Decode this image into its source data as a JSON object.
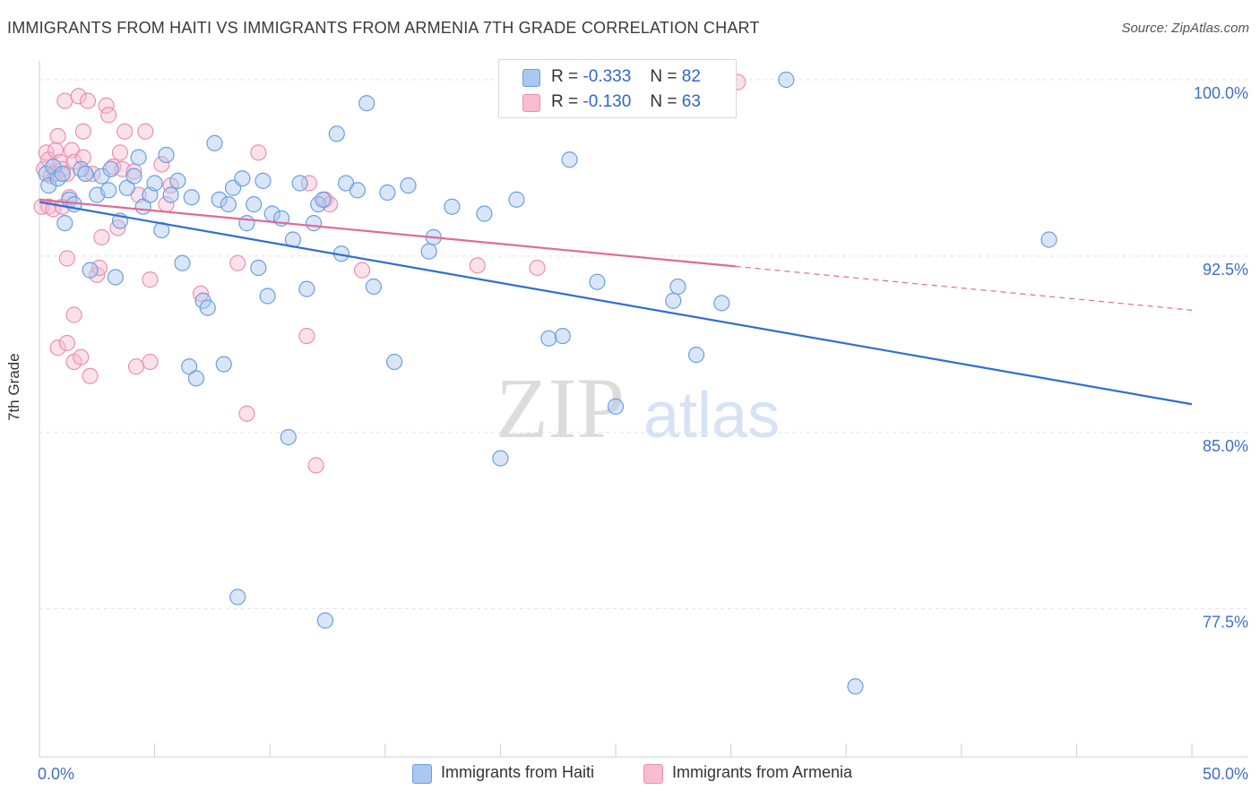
{
  "header": {
    "title": "IMMIGRANTS FROM HAITI VS IMMIGRANTS FROM ARMENIA 7TH GRADE CORRELATION CHART",
    "source": "Source: ZipAtlas.com"
  },
  "watermark": {
    "zip": "ZIP",
    "atlas": "atlas"
  },
  "legend": {
    "rows": [
      {
        "r_label": "R =",
        "r_value": "-0.333",
        "n_label": "N =",
        "n_value": "82"
      },
      {
        "r_label": "R =",
        "r_value": "-0.130",
        "n_label": "N =",
        "n_value": "63"
      }
    ]
  },
  "bottom_legend": {
    "items": [
      "Immigrants from Haiti",
      "Immigrants from Armenia"
    ]
  },
  "colors": {
    "haiti_fill": "#aac8f0",
    "haiti_stroke": "#6a9ee0",
    "haiti_line": "#2f6fd0",
    "armenia_fill": "#f7bcd0",
    "armenia_stroke": "#ec8fb0",
    "armenia_line": "#e06a95",
    "tick_text": "#3f6fc6",
    "grid": "#e3e3e3"
  },
  "chart_data": {
    "type": "scatter",
    "title": "IMMIGRANTS FROM HAITI VS IMMIGRANTS FROM ARMENIA 7TH GRADE CORRELATION CHART",
    "xlabel": "",
    "ylabel": "7th Grade",
    "xlim": [
      0,
      50
    ],
    "ylim": [
      71.2,
      100.8
    ],
    "x_tick_labels": [
      "0.0%",
      "50.0%"
    ],
    "y_ticks": [
      77.5,
      85.0,
      92.5,
      100.0
    ],
    "y_tick_labels": [
      "77.5%",
      "85.0%",
      "92.5%",
      "100.0%"
    ],
    "grid": "horizontal dashed",
    "legend_position": "top-center",
    "series": [
      {
        "name": "Immigrants from Haiti",
        "r": -0.333,
        "n": 82,
        "trend": {
          "x0": 0,
          "y0": 94.8,
          "x1": 50,
          "y1": 86.2,
          "solid_until": 50
        },
        "points": [
          [
            0.3,
            96.0
          ],
          [
            0.4,
            95.5
          ],
          [
            0.6,
            96.3
          ],
          [
            0.8,
            95.8
          ],
          [
            1.0,
            96.0
          ],
          [
            1.1,
            93.9
          ],
          [
            1.3,
            94.9
          ],
          [
            1.5,
            94.7
          ],
          [
            1.8,
            96.2
          ],
          [
            2.0,
            96.0
          ],
          [
            2.2,
            91.9
          ],
          [
            2.5,
            95.1
          ],
          [
            2.7,
            95.9
          ],
          [
            3.0,
            95.3
          ],
          [
            3.1,
            96.2
          ],
          [
            3.3,
            91.6
          ],
          [
            3.5,
            94.0
          ],
          [
            3.8,
            95.4
          ],
          [
            4.1,
            95.9
          ],
          [
            4.3,
            96.7
          ],
          [
            4.5,
            94.6
          ],
          [
            4.8,
            95.1
          ],
          [
            5.0,
            95.6
          ],
          [
            5.3,
            93.6
          ],
          [
            5.5,
            96.8
          ],
          [
            5.7,
            95.1
          ],
          [
            6.0,
            95.7
          ],
          [
            6.2,
            92.2
          ],
          [
            6.5,
            87.8
          ],
          [
            6.6,
            95.0
          ],
          [
            6.8,
            87.3
          ],
          [
            7.1,
            90.6
          ],
          [
            7.3,
            90.3
          ],
          [
            7.6,
            97.3
          ],
          [
            7.8,
            94.9
          ],
          [
            8.0,
            87.9
          ],
          [
            8.2,
            94.7
          ],
          [
            8.4,
            95.4
          ],
          [
            8.6,
            78.0
          ],
          [
            8.8,
            95.8
          ],
          [
            9.0,
            93.9
          ],
          [
            9.3,
            94.7
          ],
          [
            9.5,
            92.0
          ],
          [
            9.7,
            95.7
          ],
          [
            9.9,
            90.8
          ],
          [
            10.1,
            94.3
          ],
          [
            10.5,
            94.1
          ],
          [
            10.8,
            84.8
          ],
          [
            11.0,
            93.2
          ],
          [
            11.3,
            95.6
          ],
          [
            11.6,
            91.1
          ],
          [
            11.9,
            93.9
          ],
          [
            12.1,
            94.7
          ],
          [
            12.3,
            94.9
          ],
          [
            12.4,
            77.0
          ],
          [
            12.9,
            97.7
          ],
          [
            13.1,
            92.6
          ],
          [
            13.3,
            95.6
          ],
          [
            13.8,
            95.3
          ],
          [
            14.2,
            99.0
          ],
          [
            14.5,
            91.2
          ],
          [
            15.1,
            95.2
          ],
          [
            15.4,
            88.0
          ],
          [
            16.0,
            95.5
          ],
          [
            16.9,
            92.7
          ],
          [
            17.1,
            93.3
          ],
          [
            17.9,
            94.6
          ],
          [
            19.3,
            94.3
          ],
          [
            20.0,
            83.9
          ],
          [
            20.7,
            94.9
          ],
          [
            22.1,
            89.0
          ],
          [
            22.7,
            89.1
          ],
          [
            23.0,
            96.6
          ],
          [
            24.2,
            91.4
          ],
          [
            25.0,
            86.1
          ],
          [
            27.5,
            90.6
          ],
          [
            27.7,
            91.2
          ],
          [
            28.5,
            88.3
          ],
          [
            29.6,
            90.5
          ],
          [
            32.4,
            100.0
          ],
          [
            35.4,
            74.2
          ],
          [
            43.8,
            93.2
          ]
        ]
      },
      {
        "name": "Immigrants from Armenia",
        "r": -0.13,
        "n": 63,
        "trend": {
          "x0": 0,
          "y0": 94.9,
          "x1": 50,
          "y1": 90.2,
          "solid_until": 30.2
        },
        "points": [
          [
            0.1,
            94.6
          ],
          [
            0.2,
            96.2
          ],
          [
            0.3,
            96.9
          ],
          [
            0.4,
            96.6
          ],
          [
            0.4,
            94.6
          ],
          [
            0.5,
            95.9
          ],
          [
            0.6,
            94.5
          ],
          [
            0.7,
            97.0
          ],
          [
            0.7,
            96.0
          ],
          [
            0.8,
            97.6
          ],
          [
            0.8,
            88.6
          ],
          [
            0.9,
            96.5
          ],
          [
            1.0,
            96.2
          ],
          [
            1.0,
            94.6
          ],
          [
            1.1,
            99.1
          ],
          [
            1.2,
            96.0
          ],
          [
            1.2,
            92.4
          ],
          [
            1.2,
            88.8
          ],
          [
            1.3,
            95.0
          ],
          [
            1.4,
            97.0
          ],
          [
            1.5,
            96.5
          ],
          [
            1.5,
            90.0
          ],
          [
            1.5,
            88.0
          ],
          [
            1.7,
            99.3
          ],
          [
            1.8,
            88.2
          ],
          [
            1.9,
            96.7
          ],
          [
            1.9,
            97.8
          ],
          [
            2.0,
            96.0
          ],
          [
            2.1,
            99.1
          ],
          [
            2.2,
            87.4
          ],
          [
            2.3,
            96.0
          ],
          [
            2.5,
            91.7
          ],
          [
            2.6,
            92.0
          ],
          [
            2.7,
            93.3
          ],
          [
            2.9,
            98.9
          ],
          [
            3.0,
            98.5
          ],
          [
            3.2,
            96.3
          ],
          [
            3.4,
            93.7
          ],
          [
            3.5,
            96.9
          ],
          [
            3.6,
            96.2
          ],
          [
            3.7,
            97.8
          ],
          [
            4.1,
            96.1
          ],
          [
            4.2,
            87.8
          ],
          [
            4.3,
            95.1
          ],
          [
            4.6,
            97.8
          ],
          [
            4.8,
            91.5
          ],
          [
            4.8,
            88.0
          ],
          [
            5.3,
            96.4
          ],
          [
            5.5,
            94.7
          ],
          [
            5.7,
            95.5
          ],
          [
            7.0,
            90.9
          ],
          [
            8.6,
            92.2
          ],
          [
            9.0,
            85.8
          ],
          [
            9.5,
            96.9
          ],
          [
            11.6,
            89.1
          ],
          [
            11.7,
            95.6
          ],
          [
            12.0,
            83.6
          ],
          [
            12.4,
            94.9
          ],
          [
            12.6,
            94.7
          ],
          [
            14.0,
            91.9
          ],
          [
            19.0,
            92.1
          ],
          [
            21.6,
            92.0
          ],
          [
            30.3,
            99.9
          ]
        ]
      }
    ]
  }
}
